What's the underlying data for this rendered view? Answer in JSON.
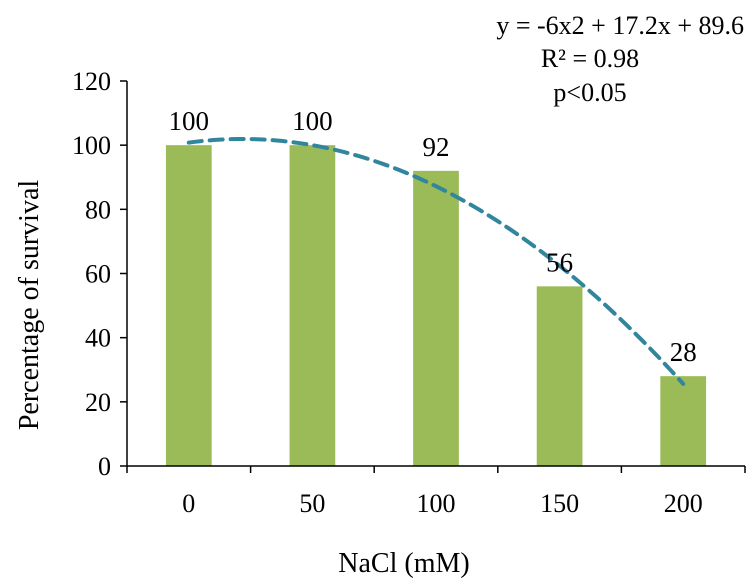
{
  "chart_data": {
    "type": "bar",
    "categories": [
      "0",
      "50",
      "100",
      "150",
      "200"
    ],
    "series": [
      {
        "values": [
          100,
          100,
          92,
          56,
          28
        ]
      }
    ],
    "data_labels": [
      "100",
      "100",
      "92",
      "56",
      "28"
    ],
    "xlabel": "NaCl (mM)",
    "ylabel": "Percentage of survival",
    "ylim": [
      0,
      120
    ],
    "yticks": [
      "0",
      "20",
      "40",
      "60",
      "80",
      "100",
      "120"
    ],
    "grid": false,
    "legend": "none",
    "trendline": {
      "type": "polynomial",
      "order": 2,
      "coefficients": [
        -6,
        17.2,
        89.6
      ],
      "style": "dashed"
    },
    "annotations": {
      "equation": "y = -6x2 + 17.2x + 89.6",
      "r_squared": "R² = 0.98",
      "significance": "p<0.05"
    },
    "colors": {
      "bar": "#9BBB59",
      "trendline": "#31859C",
      "axis": "#000000"
    }
  }
}
